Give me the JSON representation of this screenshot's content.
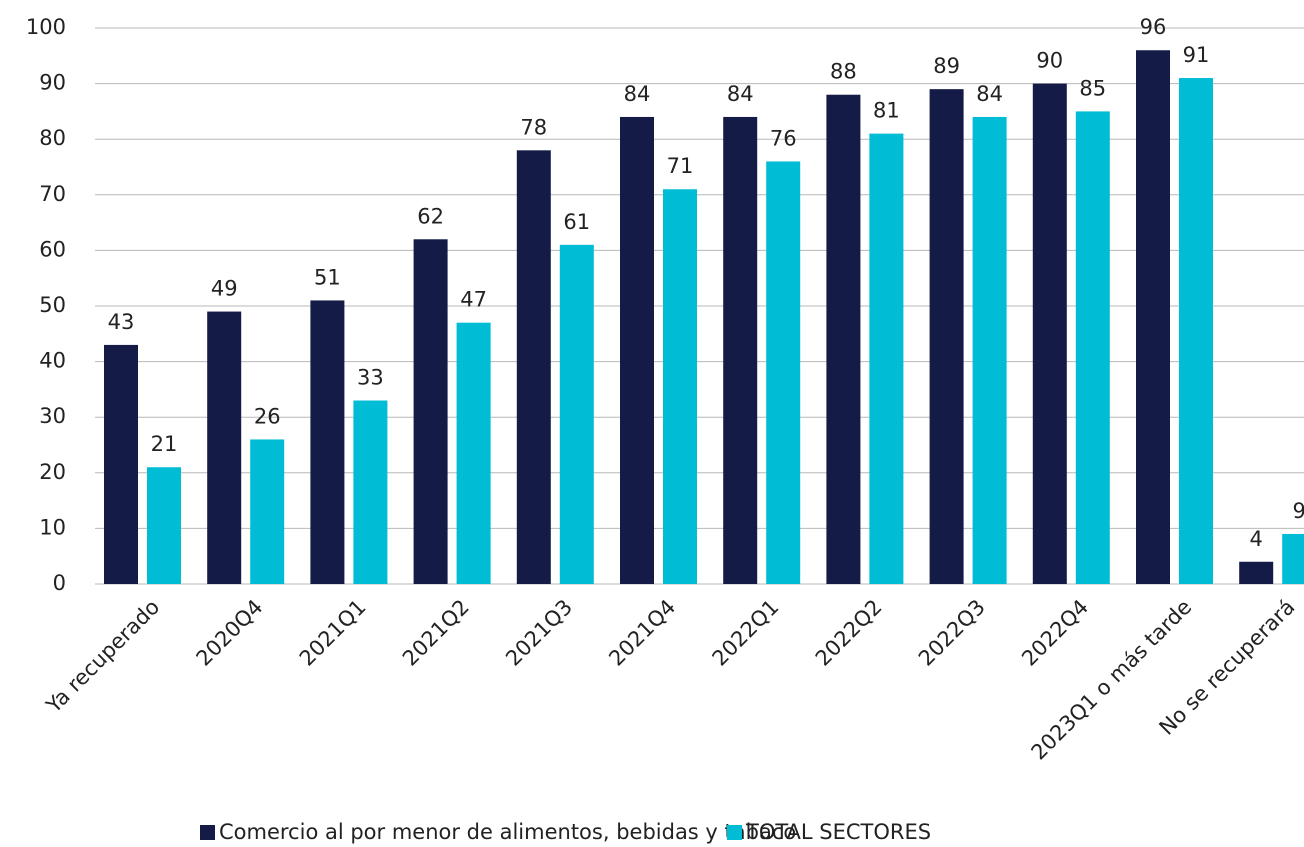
{
  "chart_data": {
    "type": "bar",
    "categories": [
      "Ya recuperado",
      "2020Q4",
      "2021Q1",
      "2021Q2",
      "2021Q3",
      "2021Q4",
      "2022Q1",
      "2022Q2",
      "2022Q3",
      "2022Q4",
      "2023Q1 o más tarde",
      "No se recuperará"
    ],
    "series": [
      {
        "name": "Comercio al por menor de alimentos, bebidas y tabaco",
        "color": "#141b47",
        "values": [
          43,
          49,
          51,
          62,
          78,
          84,
          84,
          88,
          89,
          90,
          96,
          4
        ]
      },
      {
        "name": "TOTAL SECTORES",
        "color": "#00bcd4",
        "values": [
          21,
          26,
          33,
          47,
          61,
          71,
          76,
          81,
          84,
          85,
          91,
          9
        ]
      }
    ],
    "ylim": [
      0,
      100
    ],
    "yticks": [
      0,
      10,
      20,
      30,
      40,
      50,
      60,
      70,
      80,
      90,
      100
    ],
    "grid": true,
    "legend": "bottom"
  }
}
